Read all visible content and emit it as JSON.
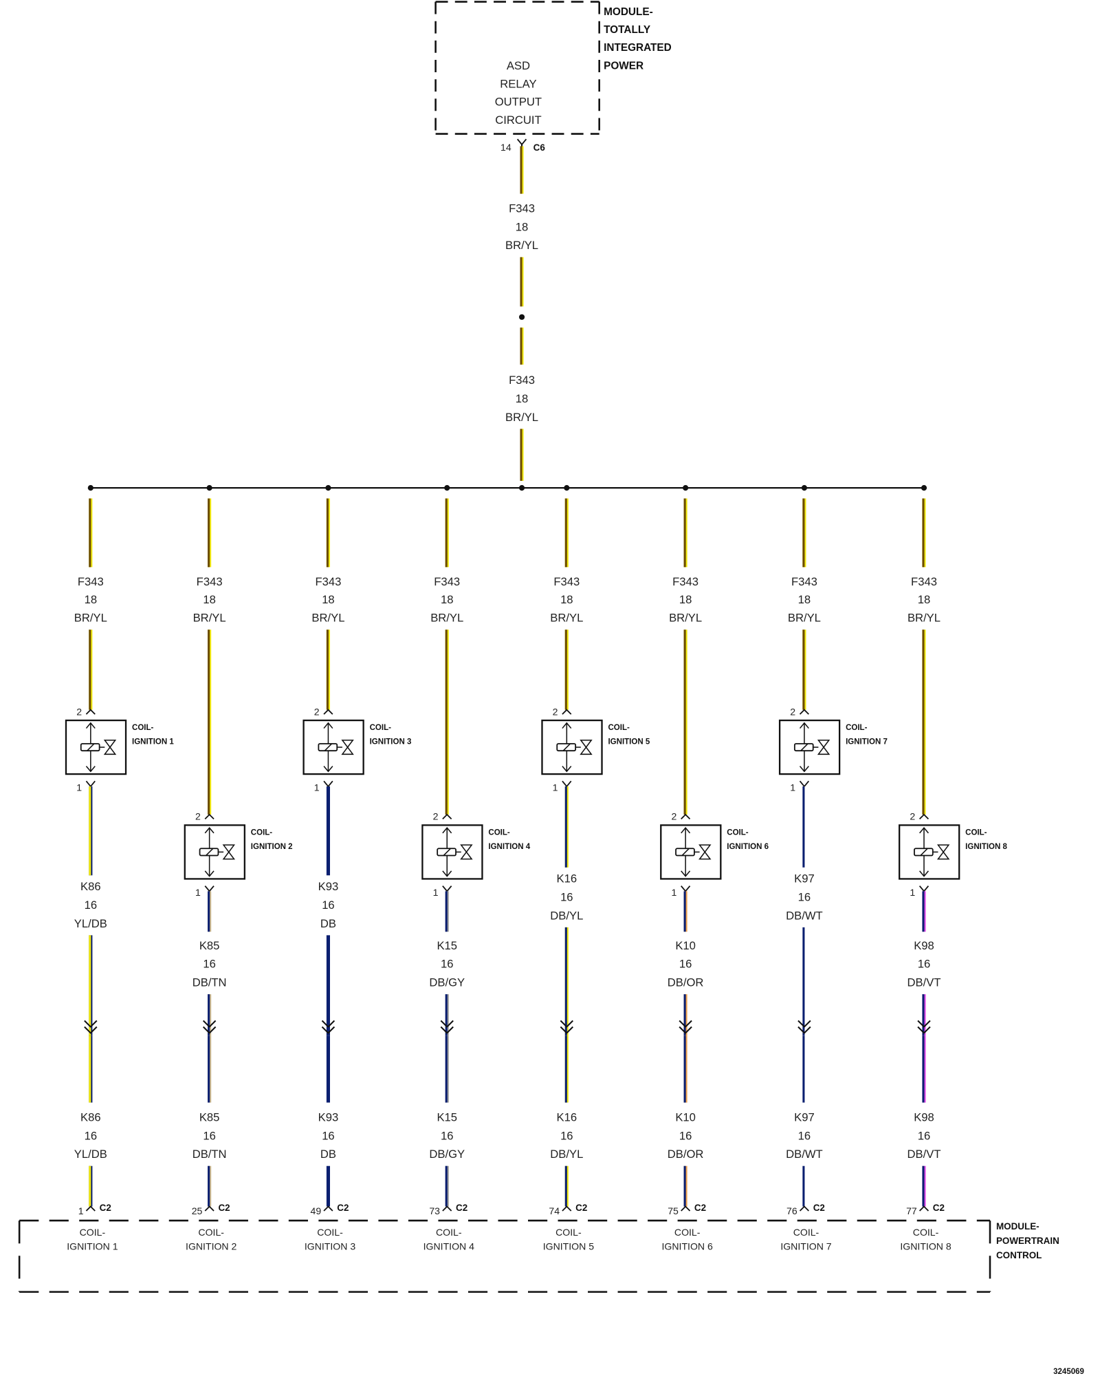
{
  "top_module": {
    "name_lines": [
      "MODULE-",
      "TOTALLY",
      "INTEGRATED",
      "POWER"
    ],
    "circuit_lines": [
      "ASD",
      "RELAY",
      "OUTPUT",
      "CIRCUIT"
    ],
    "pin": "14",
    "connector": "C6"
  },
  "feed_wire": {
    "code": "F343",
    "gauge": "18",
    "color": "BR/YL"
  },
  "columns": [
    {
      "coil": [
        "COIL-",
        "IGNITION 1"
      ],
      "out_code": "K86",
      "out_gauge": "16",
      "out_color": "YL/DB",
      "pcm_pin": "1"
    },
    {
      "coil": [
        "COIL-",
        "IGNITION 2"
      ],
      "out_code": "K85",
      "out_gauge": "16",
      "out_color": "DB/TN",
      "pcm_pin": "25"
    },
    {
      "coil": [
        "COIL-",
        "IGNITION 3"
      ],
      "out_code": "K93",
      "out_gauge": "16",
      "out_color": "DB",
      "pcm_pin": "49"
    },
    {
      "coil": [
        "COIL-",
        "IGNITION 4"
      ],
      "out_code": "K15",
      "out_gauge": "16",
      "out_color": "DB/GY",
      "pcm_pin": "73"
    },
    {
      "coil": [
        "COIL-",
        "IGNITION 5"
      ],
      "out_code": "K16",
      "out_gauge": "16",
      "out_color": "DB/YL",
      "pcm_pin": "74"
    },
    {
      "coil": [
        "COIL-",
        "IGNITION 6"
      ],
      "out_code": "K10",
      "out_gauge": "16",
      "out_color": "DB/OR",
      "pcm_pin": "75"
    },
    {
      "coil": [
        "COIL-",
        "IGNITION 7"
      ],
      "out_code": "K97",
      "out_gauge": "16",
      "out_color": "DB/WT",
      "pcm_pin": "76"
    },
    {
      "coil": [
        "COIL-",
        "IGNITION 8"
      ],
      "out_code": "K98",
      "out_gauge": "16",
      "out_color": "DB/VT",
      "pcm_pin": "77"
    }
  ],
  "coil_pins": {
    "supply": "2",
    "output": "1"
  },
  "bottom_module": {
    "name_lines": [
      "MODULE-",
      "POWERTRAIN",
      "CONTROL"
    ],
    "connector": "C2"
  },
  "diagram_id": "3245069",
  "wire_colors": {
    "BR": "#6b4c00",
    "YL": "#f2ea10",
    "DB": "#0b1f70",
    "TN": "#c9b68c",
    "GY": "#9c9c9c",
    "OR": "#f2a650",
    "WT": "#ffffff",
    "VT": "#e048e8"
  }
}
